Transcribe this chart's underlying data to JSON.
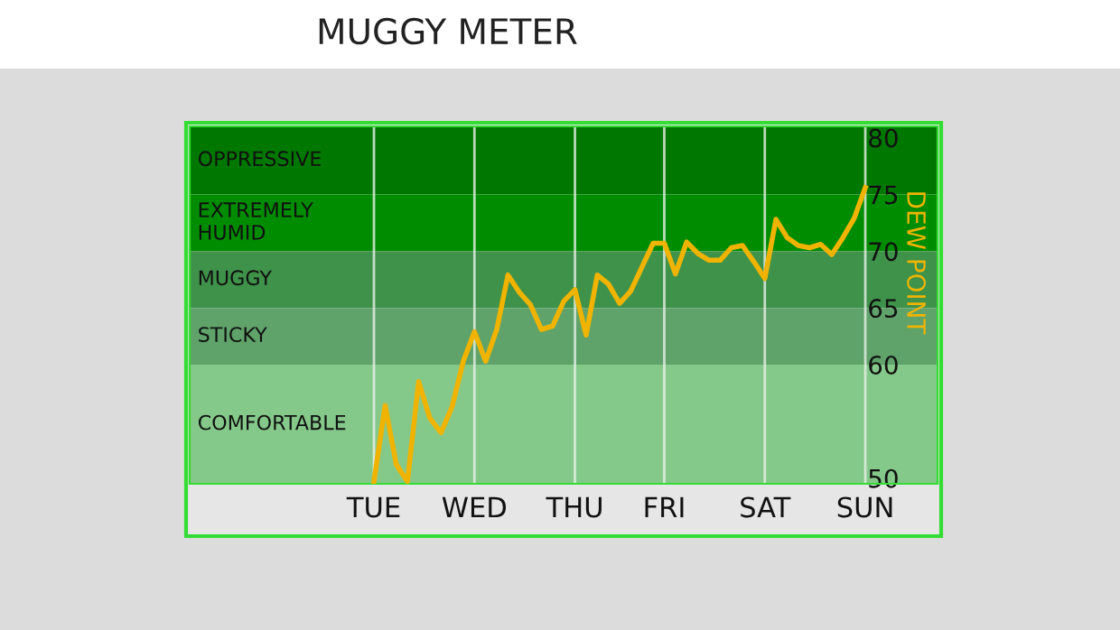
{
  "chart_data": {
    "type": "line",
    "title": "MUGGY METER",
    "ylabel": "DEW POINT",
    "categories": [
      "TUE",
      null,
      null,
      null,
      null,
      null,
      null,
      null,
      null,
      "WED",
      null,
      null,
      null,
      null,
      null,
      null,
      null,
      null,
      "THU",
      null,
      null,
      null,
      null,
      null,
      null,
      null,
      "FRI",
      null,
      null,
      null,
      null,
      null,
      null,
      null,
      null,
      "SAT",
      null,
      null,
      null,
      null,
      null,
      null,
      null,
      null,
      "SUN"
    ],
    "series": [
      {
        "color": "#f0b400",
        "values": [
          49.7,
          56.4,
          51.2,
          49.7,
          58.5,
          55.3,
          54.0,
          56.3,
          60.3,
          62.9,
          60.3,
          63.1,
          67.9,
          66.4,
          65.3,
          63.1,
          63.4,
          65.6,
          66.6,
          62.6,
          67.9,
          67.1,
          65.4,
          66.5,
          68.6,
          70.7,
          70.7,
          68.0,
          70.8,
          69.8,
          69.2,
          69.2,
          70.3,
          70.5,
          69.1,
          67.6,
          72.8,
          71.2,
          70.5,
          70.3,
          70.6,
          69.7,
          71.2,
          72.9,
          75.6
        ]
      }
    ],
    "ylim": [
      49.5,
      81
    ],
    "yticks": [
      50,
      60,
      65,
      70,
      75,
      80
    ],
    "bands": [
      {
        "axis": "y",
        "from": 75,
        "to": 81,
        "label": "OPPRESSIVE",
        "color": "#007800"
      },
      {
        "axis": "y",
        "from": 70,
        "to": 75,
        "label": "EXTREMELY\nHUMID",
        "color": "#008c00"
      },
      {
        "axis": "y",
        "from": 65,
        "to": 70,
        "label": "MUGGY",
        "color": "#3f924a"
      },
      {
        "axis": "y",
        "from": 60,
        "to": 65,
        "label": "STICKY",
        "color": "#5fa36a"
      },
      {
        "axis": "y",
        "from": 49.5,
        "to": 60,
        "label": "COMFORTABLE",
        "color": "#85c98a"
      }
    ],
    "grid": "x",
    "marker": "none",
    "line_style": "solid"
  }
}
